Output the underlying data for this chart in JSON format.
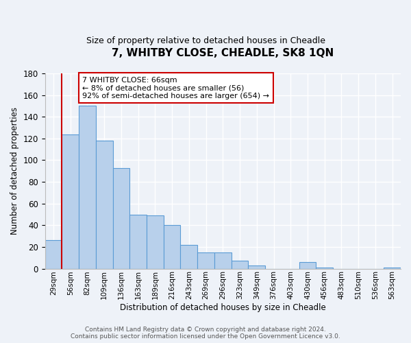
{
  "title": "7, WHITBY CLOSE, CHEADLE, SK8 1QN",
  "subtitle": "Size of property relative to detached houses in Cheadle",
  "xlabel": "Distribution of detached houses by size in Cheadle",
  "ylabel": "Number of detached properties",
  "bar_color": "#b8d0eb",
  "bar_edge_color": "#5b9bd5",
  "background_color": "#eef2f8",
  "grid_color": "#d0d8e8",
  "bin_labels": [
    "29sqm",
    "56sqm",
    "82sqm",
    "109sqm",
    "136sqm",
    "163sqm",
    "189sqm",
    "216sqm",
    "243sqm",
    "269sqm",
    "296sqm",
    "323sqm",
    "349sqm",
    "376sqm",
    "403sqm",
    "430sqm",
    "456sqm",
    "483sqm",
    "510sqm",
    "536sqm",
    "563sqm"
  ],
  "bar_heights": [
    26,
    124,
    150,
    118,
    93,
    50,
    49,
    40,
    22,
    15,
    15,
    7,
    3,
    0,
    0,
    6,
    1,
    0,
    0,
    0,
    1
  ],
  "ylim": [
    0,
    180
  ],
  "yticks": [
    0,
    20,
    40,
    60,
    80,
    100,
    120,
    140,
    160,
    180
  ],
  "redline_x": 0.5,
  "annotation_line1": "7 WHITBY CLOSE: 66sqm",
  "annotation_line2": "← 8% of detached houses are smaller (56)",
  "annotation_line3": "92% of semi-detached houses are larger (654) →",
  "annotation_box_color": "#ffffff",
  "annotation_border_color": "#cc0000",
  "footer_line1": "Contains HM Land Registry data © Crown copyright and database right 2024.",
  "footer_line2": "Contains public sector information licensed under the Open Government Licence v3.0."
}
